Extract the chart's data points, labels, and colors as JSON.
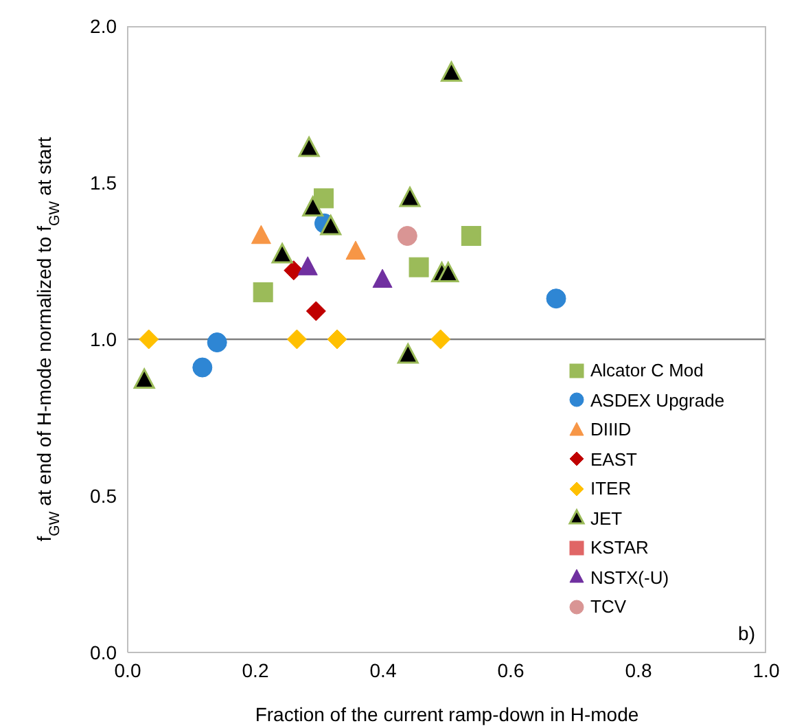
{
  "chart_data": {
    "type": "scatter",
    "xlabel": "Fraction of the current ramp-down in H-mode",
    "ylabel": "f$_{GW}$ at end of H-mode normalized to f$_{GW}$ at start",
    "xlim": [
      0,
      1
    ],
    "xticks": [
      {
        "value": 0,
        "label": "0.0"
      },
      {
        "value": 0.2,
        "label": "0.2"
      },
      {
        "value": 0.4,
        "label": "0.4"
      },
      {
        "value": 0.6,
        "label": "0.6"
      },
      {
        "value": 0.8,
        "label": "0.8"
      },
      {
        "value": 1,
        "label": "1.0"
      }
    ],
    "ylim": [
      0,
      2
    ],
    "yticks": [
      {
        "value": 0,
        "label": "0.0"
      },
      {
        "value": 0.5,
        "label": "0.5"
      },
      {
        "value": 1,
        "label": "1.0"
      },
      {
        "value": 1.5,
        "label": "1.5"
      },
      {
        "value": 2,
        "label": "2.0"
      }
    ],
    "grid": false,
    "legend": "bottom right",
    "ref_lines": [
      {
        "axis": "y",
        "value": 1,
        "color": "#7f7f7f"
      }
    ],
    "annotations": [
      "b)"
    ],
    "series": [
      {
        "name": "Alcator C Mod",
        "color": "#9bbb59",
        "marker": "square",
        "x": [
          0.212,
          0.307,
          0.456,
          0.538
        ],
        "values": [
          1.15,
          1.45,
          1.23,
          1.33
        ]
      },
      {
        "name": "ASDEX Upgrade",
        "color": "#2e86d4",
        "marker": "circle",
        "x": [
          0.117,
          0.14,
          0.308,
          0.671
        ],
        "values": [
          0.91,
          0.99,
          1.37,
          1.13
        ]
      },
      {
        "name": "DIIID",
        "color": "#f79646",
        "marker": "triangle",
        "x": [
          0.209,
          0.357
        ],
        "values": [
          1.33,
          1.28
        ]
      },
      {
        "name": "EAST",
        "color": "#c00000",
        "marker": "diamond",
        "x": [
          0.26,
          0.295
        ],
        "values": [
          1.22,
          1.09
        ]
      },
      {
        "name": "ITER",
        "color": "#ffc000",
        "marker": "diamond",
        "x": [
          0.033,
          0.265,
          0.328,
          0.49
        ],
        "values": [
          1.0,
          1.0,
          1.0,
          1.0
        ]
      },
      {
        "name": "JET",
        "color": "#000000",
        "marker": "triangle",
        "x": [
          0.026,
          0.242,
          0.284,
          0.29,
          0.318,
          0.442,
          0.439,
          0.507,
          0.492,
          0.502
        ],
        "values": [
          0.87,
          1.27,
          1.61,
          1.42,
          1.36,
          1.45,
          0.95,
          1.85,
          1.21,
          1.21
        ]
      },
      {
        "name": "KSTAR",
        "color": "#e06666",
        "marker": "square"
      },
      {
        "name": "NSTX(-U)",
        "color": "#7030a0",
        "marker": "triangle",
        "x": [
          0.282,
          0.399
        ],
        "values": [
          1.23,
          1.19
        ]
      },
      {
        "name": "TCV",
        "color": "#d99594",
        "marker": "circle",
        "x": [
          0.438
        ],
        "values": [
          1.33
        ]
      }
    ]
  }
}
